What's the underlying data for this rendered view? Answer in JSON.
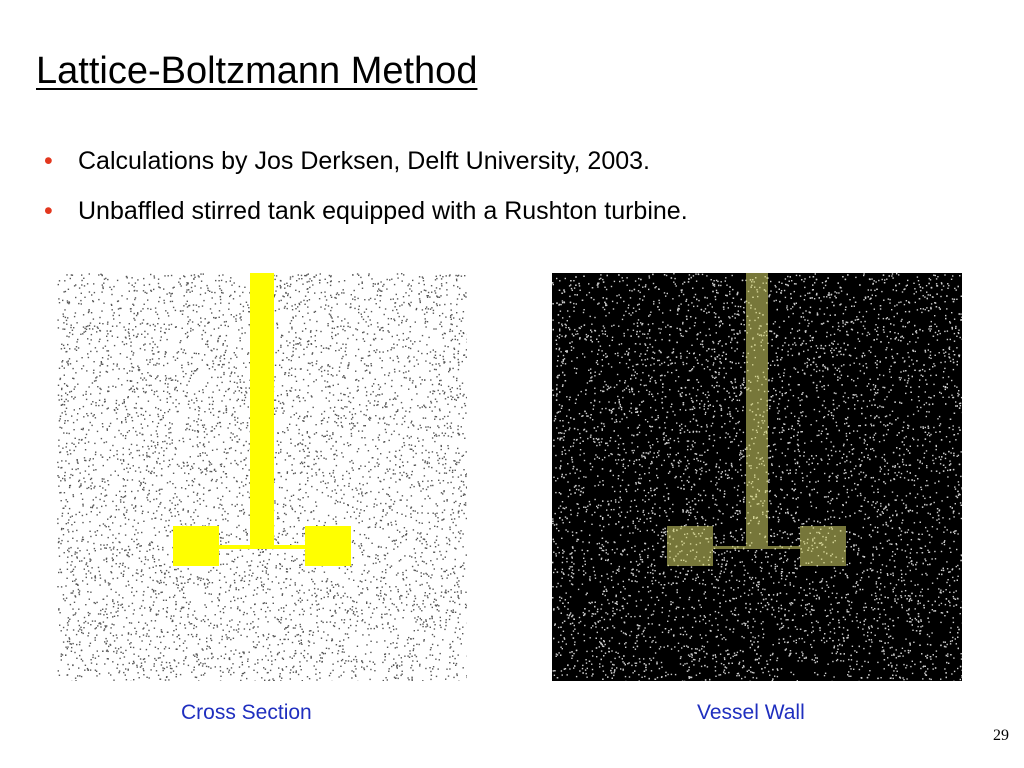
{
  "slide": {
    "title": "Lattice-Boltzmann Method",
    "bullets": [
      "Calculations by Jos Derksen, Delft University, 2003.",
      "Unbaffled stirred tank equipped with a Rushton turbine."
    ],
    "bullet_marker": "•",
    "colors": {
      "bullet": "#e3371e",
      "caption": "#1f2fbf",
      "impeller": "#ffff00",
      "impeller_faded": "#d8d86a",
      "left_bg": "#ffffff",
      "right_bg": "#000000"
    },
    "figures": [
      {
        "caption": "Cross Section"
      },
      {
        "caption": "Vessel Wall"
      }
    ],
    "page_number": "29"
  }
}
